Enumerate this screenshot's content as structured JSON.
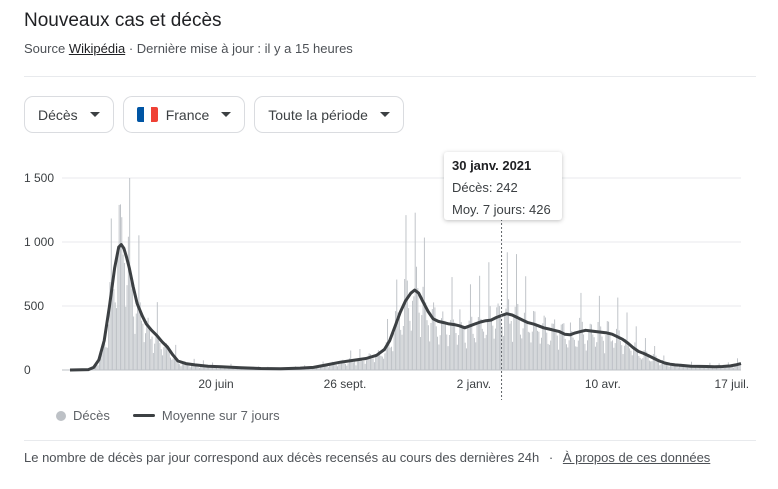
{
  "header": {
    "title": "Nouveaux cas et décès",
    "source_prefix": "Source",
    "source_link": "Wikipédia",
    "updated": "· Dernière mise à jour : il y a 15 heures"
  },
  "filters": {
    "metric": "Décès",
    "region": "France",
    "period": "Toute la période"
  },
  "colors": {
    "bars": "#bdc1c6",
    "line": "#3c4043",
    "flag": [
      "#0055a4",
      "#ffffff",
      "#ef4135"
    ]
  },
  "tooltip": {
    "date": "30 janv. 2021",
    "deaths_label": "Décès: 242",
    "avg_label": "Moy. 7 jours: 426"
  },
  "legend": {
    "bars": "Décès",
    "line": "Moyenne sur 7 jours"
  },
  "footer": {
    "note": "Le nombre de décès par jour correspond aux décès recensés au cours des dernières 24h",
    "separator": "·",
    "about": "À propos de ces données"
  },
  "chart_data": {
    "type": "bar",
    "ylim": [
      0,
      1500
    ],
    "yticks": [
      0,
      500,
      1000,
      1500
    ],
    "ytick_labels": [
      "0",
      "500",
      "1 000",
      "1 500"
    ],
    "xtick_labels": [
      "20 juin",
      "26 sept.",
      "2 janv.",
      "10 avr.",
      "17 juil."
    ],
    "xtick_days": [
      111,
      209,
      307,
      405,
      503
    ],
    "total_days": 510,
    "grid": true,
    "legend_position": "bottom",
    "series": [
      {
        "name": "Décès",
        "kind": "bar"
      },
      {
        "name": "Moyenne sur 7 jours",
        "kind": "line",
        "points": [
          [
            0,
            0
          ],
          [
            14,
            3
          ],
          [
            18,
            20
          ],
          [
            22,
            80
          ],
          [
            26,
            230
          ],
          [
            30,
            500
          ],
          [
            34,
            800
          ],
          [
            37,
            960
          ],
          [
            39,
            980
          ],
          [
            41,
            950
          ],
          [
            43,
            880
          ],
          [
            45,
            800
          ],
          [
            48,
            650
          ],
          [
            51,
            520
          ],
          [
            55,
            420
          ],
          [
            58,
            360
          ],
          [
            62,
            310
          ],
          [
            66,
            270
          ],
          [
            70,
            220
          ],
          [
            74,
            180
          ],
          [
            78,
            120
          ],
          [
            82,
            70
          ],
          [
            88,
            50
          ],
          [
            95,
            40
          ],
          [
            105,
            30
          ],
          [
            115,
            25
          ],
          [
            130,
            18
          ],
          [
            145,
            12
          ],
          [
            160,
            10
          ],
          [
            175,
            15
          ],
          [
            185,
            20
          ],
          [
            195,
            40
          ],
          [
            205,
            60
          ],
          [
            215,
            75
          ],
          [
            225,
            90
          ],
          [
            233,
            115
          ],
          [
            239,
            160
          ],
          [
            243,
            230
          ],
          [
            247,
            340
          ],
          [
            251,
            450
          ],
          [
            255,
            540
          ],
          [
            259,
            600
          ],
          [
            262,
            625
          ],
          [
            265,
            600
          ],
          [
            268,
            540
          ],
          [
            272,
            460
          ],
          [
            276,
            400
          ],
          [
            280,
            380
          ],
          [
            284,
            370
          ],
          [
            288,
            360
          ],
          [
            292,
            355
          ],
          [
            296,
            345
          ],
          [
            300,
            330
          ],
          [
            304,
            345
          ],
          [
            308,
            360
          ],
          [
            312,
            375
          ],
          [
            316,
            385
          ],
          [
            320,
            390
          ],
          [
            324,
            410
          ],
          [
            328,
            426
          ],
          [
            332,
            440
          ],
          [
            336,
            430
          ],
          [
            340,
            410
          ],
          [
            344,
            390
          ],
          [
            348,
            370
          ],
          [
            352,
            360
          ],
          [
            356,
            345
          ],
          [
            360,
            330
          ],
          [
            364,
            320
          ],
          [
            368,
            310
          ],
          [
            372,
            300
          ],
          [
            376,
            280
          ],
          [
            380,
            275
          ],
          [
            384,
            290
          ],
          [
            388,
            300
          ],
          [
            392,
            310
          ],
          [
            396,
            305
          ],
          [
            400,
            300
          ],
          [
            404,
            295
          ],
          [
            408,
            290
          ],
          [
            412,
            280
          ],
          [
            416,
            260
          ],
          [
            420,
            240
          ],
          [
            424,
            210
          ],
          [
            428,
            175
          ],
          [
            432,
            145
          ],
          [
            436,
            130
          ],
          [
            440,
            110
          ],
          [
            444,
            90
          ],
          [
            448,
            70
          ],
          [
            452,
            55
          ],
          [
            456,
            45
          ],
          [
            460,
            40
          ],
          [
            466,
            35
          ],
          [
            472,
            30
          ],
          [
            478,
            28
          ],
          [
            484,
            27
          ],
          [
            490,
            26
          ],
          [
            496,
            27
          ],
          [
            502,
            32
          ],
          [
            506,
            40
          ],
          [
            510,
            50
          ]
        ]
      }
    ]
  }
}
